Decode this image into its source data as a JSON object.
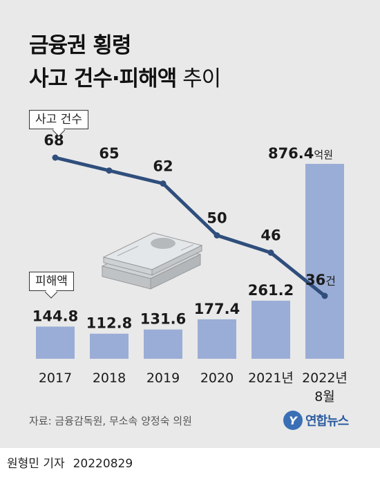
{
  "title": {
    "line1": "금융권 횡령",
    "line2_bold": "사고 건수·피해액",
    "line2_light": " 추이"
  },
  "callouts": {
    "line_label": "사고 건수",
    "bar_label": "피해액"
  },
  "source": "자료: 금융감독원, 무소속 양정숙 의원",
  "logo": {
    "mark": "Y",
    "text": "연합뉴스"
  },
  "byline": {
    "name": "원형민 기자",
    "date": "20220829"
  },
  "colors": {
    "bar": "#9aadd6",
    "line": "#2f4e7c",
    "panel": "#e9e9e9"
  },
  "chart_data": {
    "type": "bar",
    "categories": [
      "2017",
      "2018",
      "2019",
      "2020",
      "2021년",
      "2022년\n8월"
    ],
    "series": [
      {
        "name": "피해액",
        "type": "bar",
        "values": [
          144.8,
          112.8,
          131.6,
          177.4,
          261.2,
          876.4
        ],
        "labels": [
          "144.8",
          "112.8",
          "131.6",
          "177.4",
          "261.2",
          "876.4"
        ],
        "last_label_unit": "억원"
      },
      {
        "name": "사고 건수",
        "type": "line",
        "values": [
          68,
          65,
          62,
          50,
          46,
          36
        ],
        "labels": [
          "68",
          "65",
          "62",
          "50",
          "46",
          "36"
        ],
        "last_label_unit": "건"
      }
    ],
    "grid": false,
    "legend": "callouts"
  }
}
